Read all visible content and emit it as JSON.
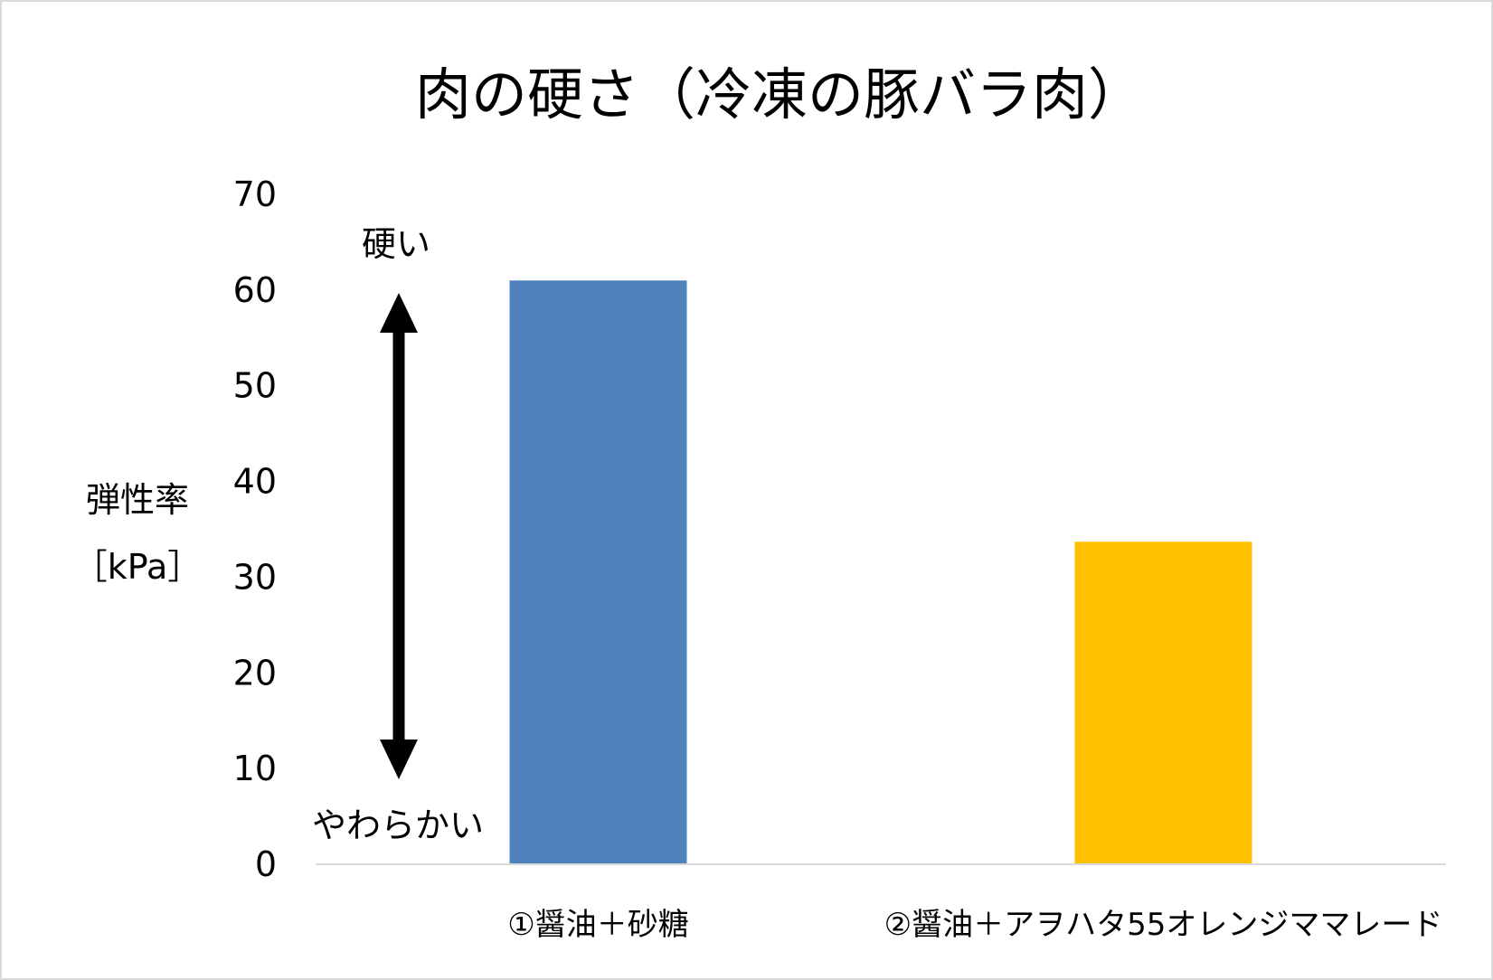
{
  "chart_data": {
    "type": "bar",
    "title": "肉の硬さ（冷凍の豚バラ肉）",
    "ylabel_lines": [
      "弾性率",
      "［kPa］"
    ],
    "xlabel": "",
    "categories": [
      "①醤油＋砂糖",
      "②醤油＋アヲハタ55オレンジママレード"
    ],
    "values": [
      61,
      33.7
    ],
    "bar_colors": [
      "#4F81BD",
      "#FFC000"
    ],
    "ylim": [
      0,
      70
    ],
    "yticks": [
      0,
      10,
      20,
      30,
      40,
      50,
      60,
      70
    ],
    "grid": false,
    "legend": "none",
    "annotations": {
      "top": "硬い",
      "bottom": "やわらかい",
      "arrow": "double-headed-vertical-arrow"
    },
    "axis_color": "#d9d9d9"
  }
}
